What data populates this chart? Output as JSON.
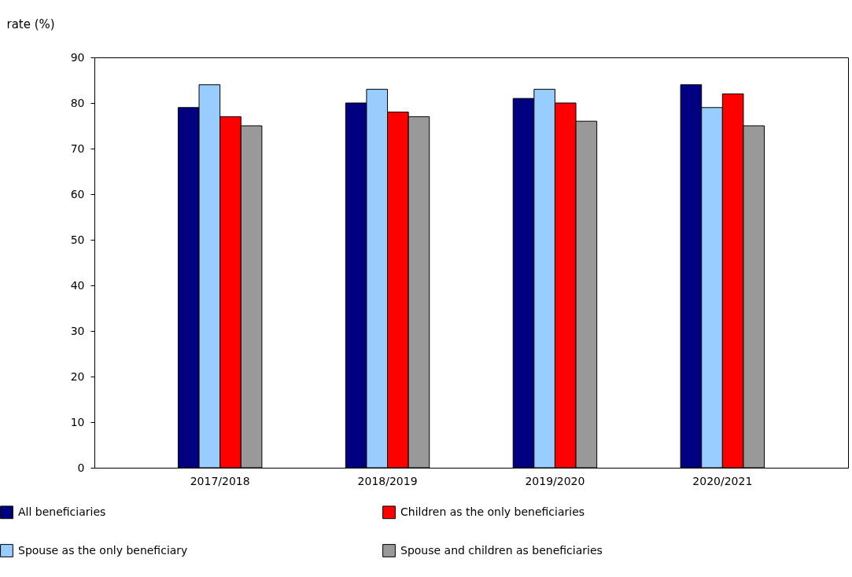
{
  "chart_data": {
    "type": "bar",
    "ylabel": "rate (%)",
    "categories": [
      "2017/2018",
      "2018/2019",
      "2019/2020",
      "2020/2021"
    ],
    "series": [
      {
        "name": "All beneficiaries",
        "color": "#000080",
        "values": [
          79,
          80,
          81,
          84
        ]
      },
      {
        "name": "Spouse as the only beneficiary",
        "color": "#99ccff",
        "values": [
          84,
          83,
          83,
          79
        ]
      },
      {
        "name": "Children as the only beneficiaries",
        "color": "#ff0000",
        "values": [
          77,
          78,
          80,
          82
        ]
      },
      {
        "name": "Spouse and children as beneficiaries",
        "color": "#999999",
        "values": [
          75,
          77,
          76,
          75
        ]
      }
    ],
    "ylim": [
      0,
      90
    ],
    "yticks": [
      0,
      10,
      20,
      30,
      40,
      50,
      60,
      70,
      80,
      90
    ],
    "grid": false,
    "legend": "bottom"
  }
}
